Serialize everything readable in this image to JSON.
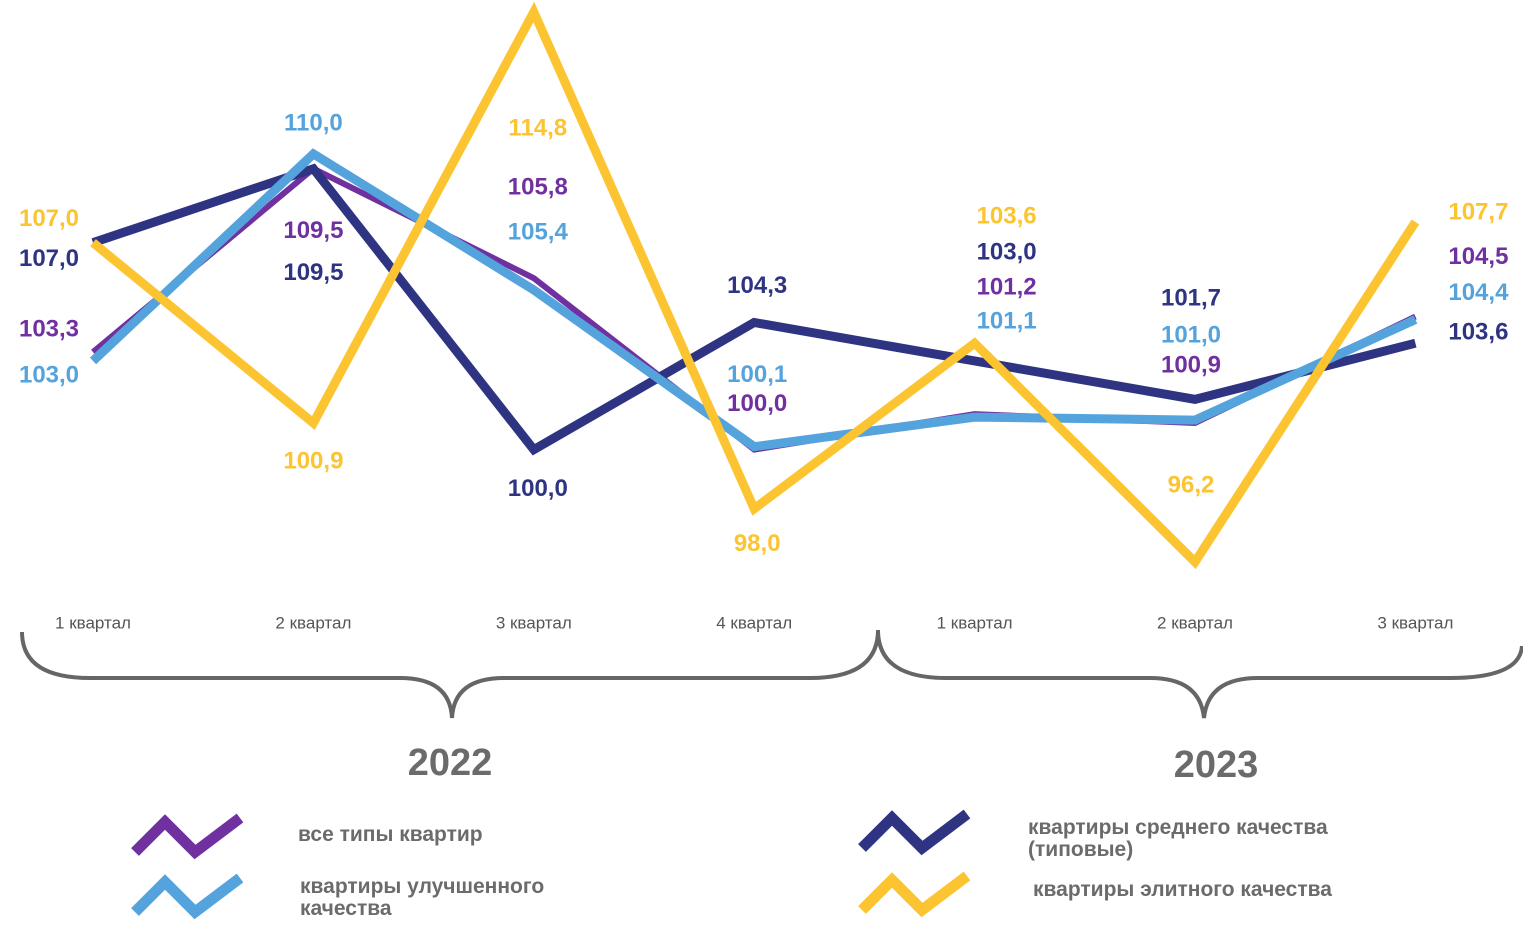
{
  "chart_data": {
    "type": "line",
    "categories": [
      "1 квартал",
      "2 квартал",
      "3 квартал",
      "4 квартал",
      "1 квартал",
      "2 квартал",
      "3 квартал"
    ],
    "groups": [
      "2022",
      "2023"
    ],
    "series": [
      {
        "name": "все типы квартир",
        "color": "#7030a0",
        "values": [
          103.3,
          109.5,
          105.8,
          100.0,
          101.2,
          100.9,
          104.5
        ],
        "value_labels": [
          "103,3",
          "109,5",
          "105,8",
          "100,0",
          "101,2",
          "100,9",
          "104,5"
        ]
      },
      {
        "name": "квартиры среднего качества (типовые)",
        "color": "#2e3482",
        "values": [
          107.0,
          109.5,
          100.0,
          104.3,
          103.0,
          101.7,
          103.6
        ],
        "value_labels": [
          "107,0",
          "109,5",
          "100,0",
          "104,3",
          "103,0",
          "101,7",
          "103,6"
        ]
      },
      {
        "name": "квартиры улучшенного качества",
        "color": "#55a3dc",
        "values": [
          103.0,
          110.0,
          105.4,
          100.1,
          101.1,
          101.0,
          104.4
        ],
        "value_labels": [
          "103,0",
          "110,0",
          "105,4",
          "100,1",
          "101,1",
          "101,0",
          "104,4"
        ]
      },
      {
        "name": "квартиры элитного качества",
        "color": "#fcc430",
        "values": [
          107.0,
          100.9,
          114.8,
          98.0,
          103.6,
          96.2,
          107.7
        ],
        "value_labels": [
          "107,0",
          "100,9",
          "114,8",
          "98,0",
          "103,6",
          "96,2",
          "107,7"
        ]
      }
    ]
  }
}
